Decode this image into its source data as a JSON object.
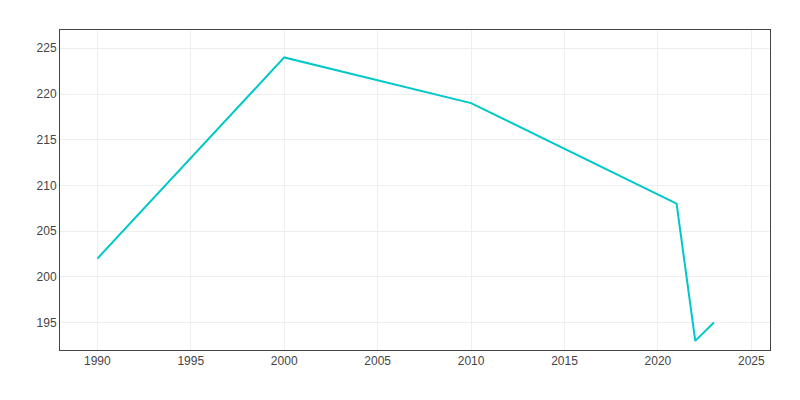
{
  "chart_data": {
    "type": "line",
    "x": [
      1990,
      2000,
      2010,
      2020,
      2021,
      2022,
      2023
    ],
    "values": [
      202,
      224,
      219,
      209,
      208,
      193,
      195
    ],
    "color": "#00C8C8",
    "xlim": [
      1988,
      2026
    ],
    "ylim": [
      192,
      227
    ],
    "xticks": [
      1990,
      1995,
      2000,
      2005,
      2010,
      2015,
      2020,
      2025
    ],
    "yticks": [
      195,
      200,
      205,
      210,
      215,
      220,
      225
    ],
    "grid": true
  }
}
